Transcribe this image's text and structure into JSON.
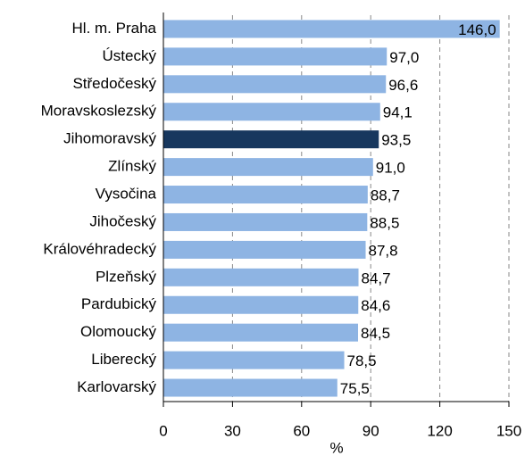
{
  "chart_data": {
    "type": "hbar",
    "xlabel": "%",
    "categories": [
      "Hl. m. Praha",
      "Ústecký",
      "Středočeský",
      "Moravskoslezský",
      "Jihomoravský",
      "Zlínský",
      "Vysočina",
      "Jihočeský",
      "Královéhradecký",
      "Plzeňský",
      "Pardubický",
      "Olomoucký",
      "Liberecký",
      "Karlovarský"
    ],
    "values": [
      146.0,
      97.0,
      96.6,
      94.1,
      93.5,
      91.0,
      88.7,
      88.5,
      87.8,
      84.7,
      84.6,
      84.5,
      78.5,
      75.5
    ],
    "value_labels": [
      "146,0",
      "97,0",
      "96,6",
      "94,1",
      "93,5",
      "91,0",
      "88,7",
      "88,5",
      "87,8",
      "84,7",
      "84,6",
      "84,5",
      "78,5",
      "75,5"
    ],
    "colors": [
      "#8eb4e3",
      "#8eb4e3",
      "#8eb4e3",
      "#8eb4e3",
      "#17375e",
      "#8eb4e3",
      "#8eb4e3",
      "#8eb4e3",
      "#8eb4e3",
      "#8eb4e3",
      "#8eb4e3",
      "#8eb4e3",
      "#8eb4e3",
      "#8eb4e3"
    ],
    "xlim": [
      0,
      150
    ],
    "xticks": [
      0,
      30,
      60,
      90,
      120,
      150
    ],
    "grid": true
  }
}
